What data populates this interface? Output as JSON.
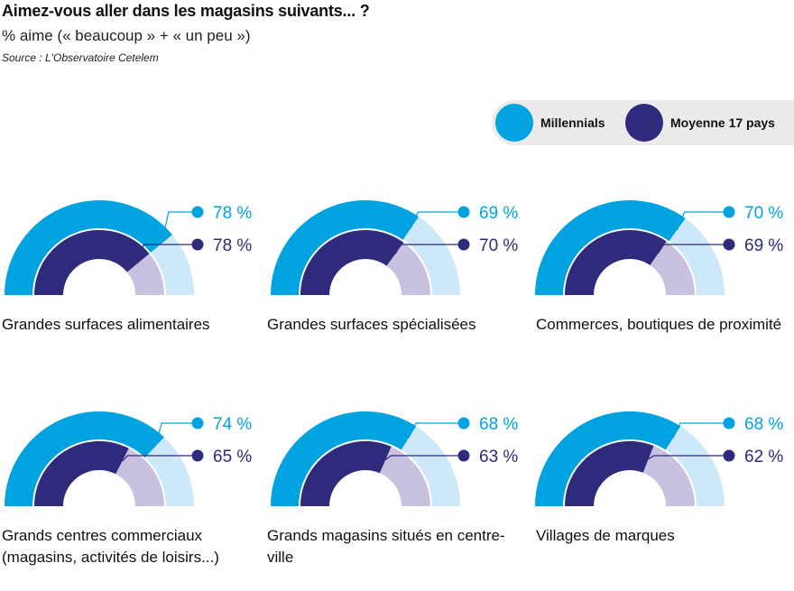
{
  "title": "Aimez-vous aller dans les magasins suivants... ?",
  "subtitle": "% aime (« beaucoup » + « un peu »)",
  "source": "Source : L'Observatoire Cetelem",
  "legend": {
    "series1": "Millennials",
    "series2": "Moyenne 17 pays"
  },
  "colors": {
    "millennials": "#00a3e0",
    "millennials_light": "#cde8f8",
    "moyenne": "#2e2a7c",
    "moyenne_light": "#c9c1e0"
  },
  "chart_data": {
    "type": "gauge",
    "unit": "%",
    "scale_max": 100,
    "series": [
      {
        "name": "Millennials",
        "values": [
          78,
          69,
          70,
          74,
          68,
          68
        ]
      },
      {
        "name": "Moyenne 17 pays",
        "values": [
          78,
          70,
          69,
          65,
          63,
          62
        ]
      }
    ],
    "categories": [
      "Grandes surfaces alimentaires",
      "Grandes surfaces spécialisées",
      "Commerces, boutiques de proximité",
      "Grands centres commerciaux (magasins, activités de loisirs...)",
      "Grands magasins situés en centre-ville",
      "Villages de marques"
    ],
    "value_labels": {
      "millennials": [
        "78 %",
        "69 %",
        "70 %",
        "74 %",
        "68 %",
        "68 %"
      ],
      "moyenne": [
        "78 %",
        "70 %",
        "69 %",
        "65 %",
        "63 %",
        "62 %"
      ]
    }
  }
}
